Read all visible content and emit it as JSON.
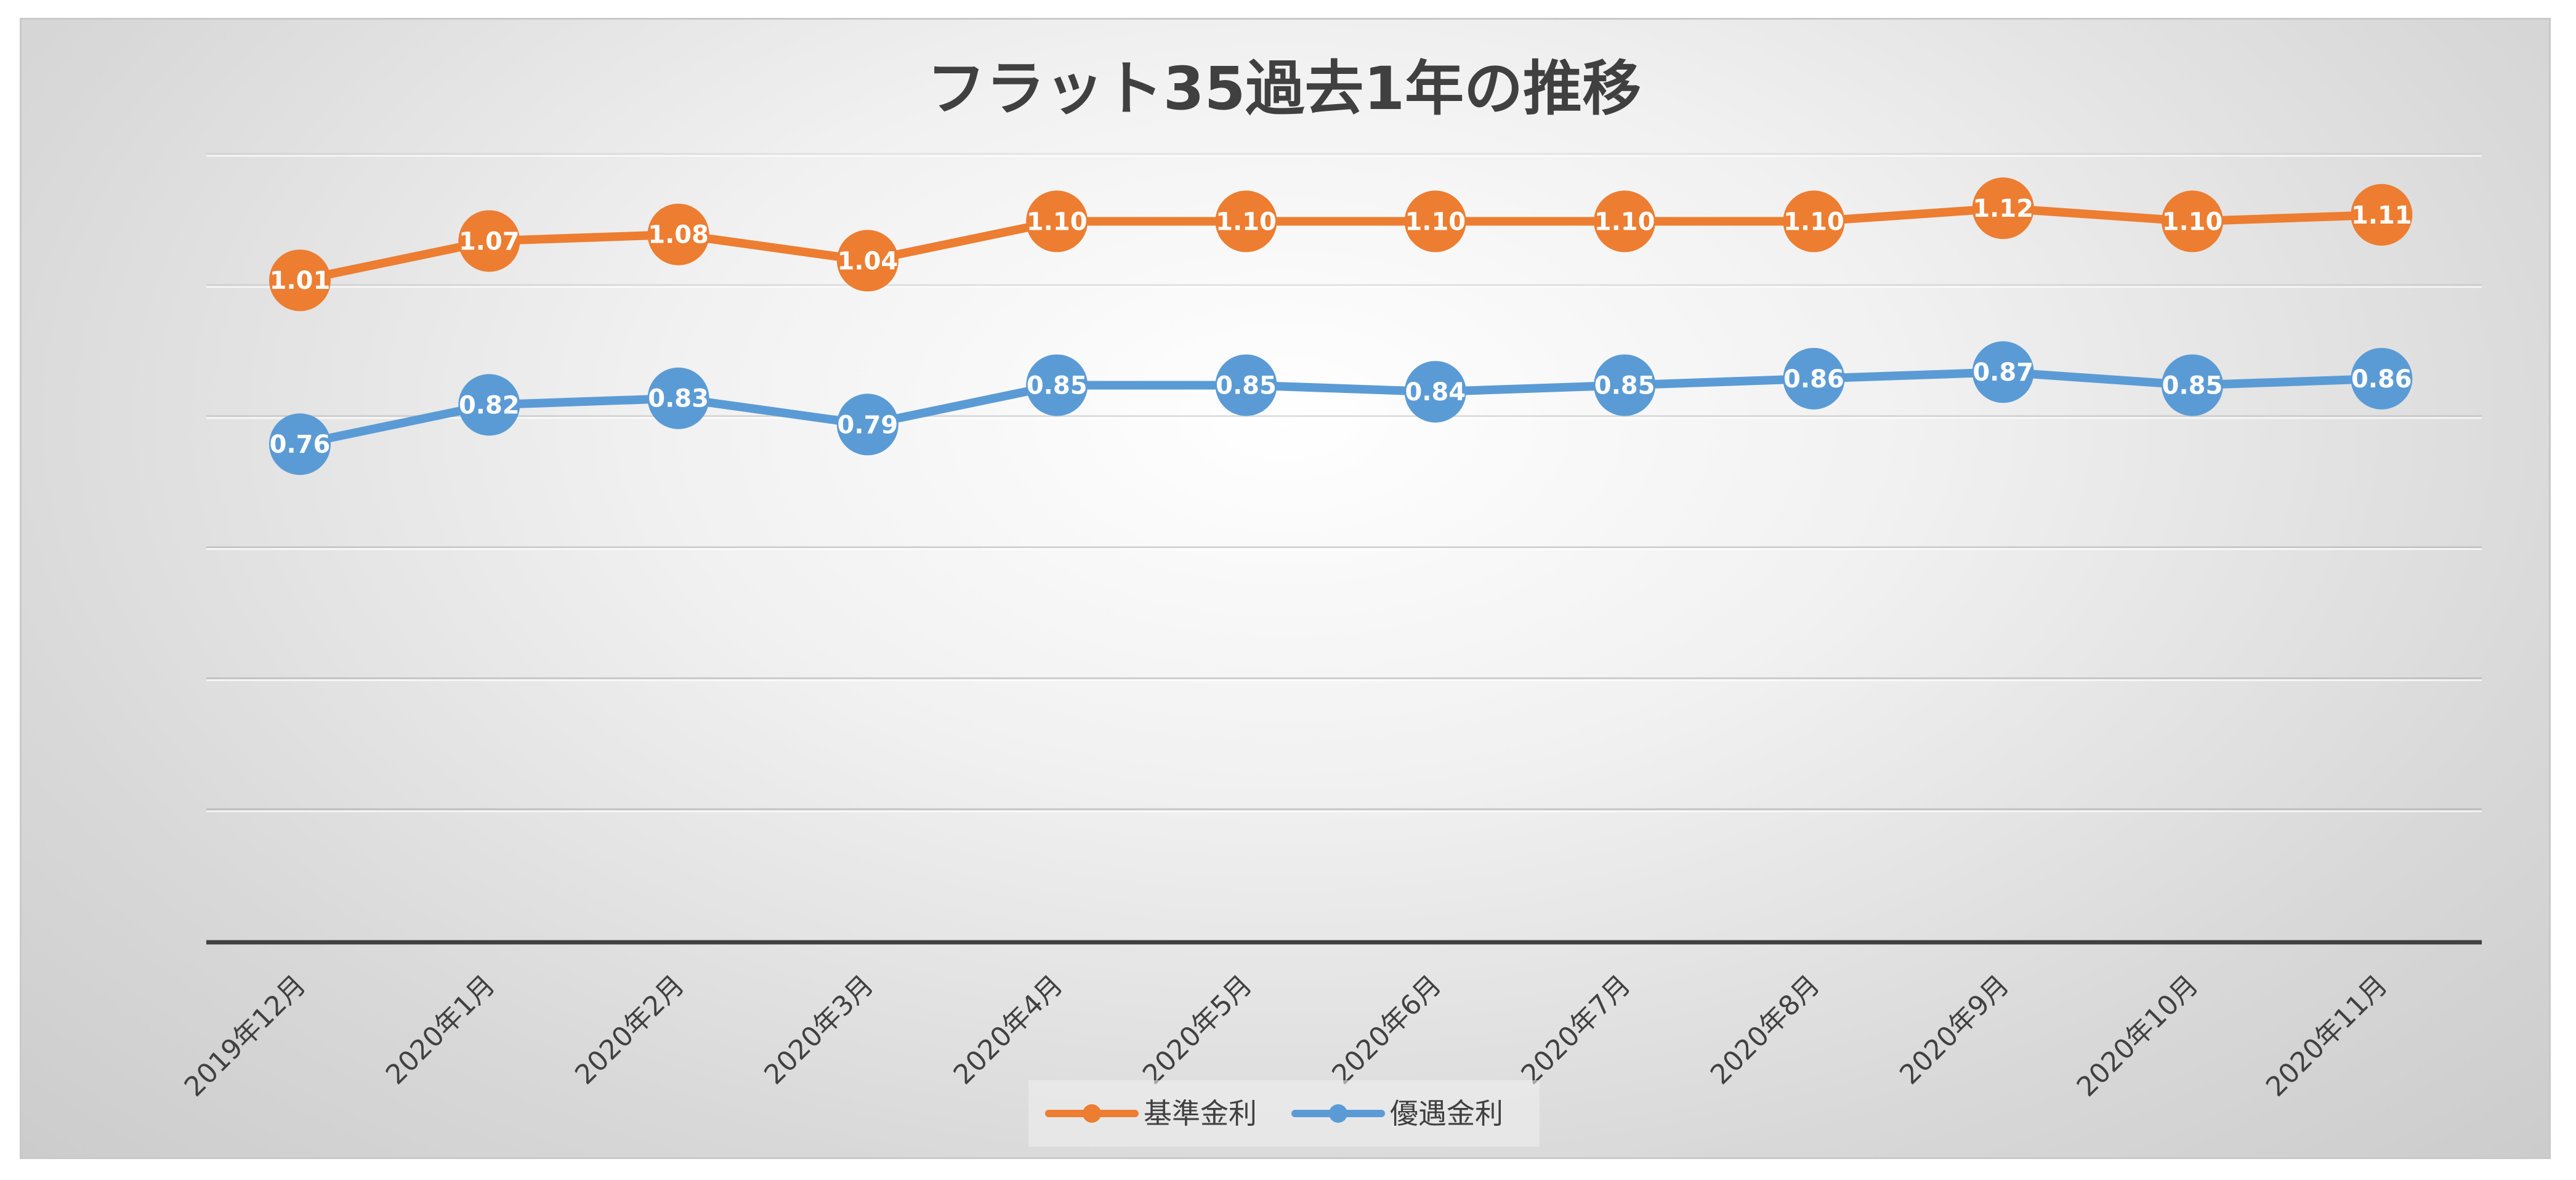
{
  "colors": {
    "series_1": "#ED7D31",
    "series_2": "#5B9BD5",
    "grid": "#a6a6a6",
    "axis": "#404040",
    "text": "#404040"
  },
  "chart_data": {
    "type": "line",
    "title": "フラット35過去1年の推移",
    "xlabel": "",
    "ylabel": "",
    "categories": [
      "2019年12月",
      "2020年1月",
      "2020年2月",
      "2020年3月",
      "2020年4月",
      "2020年5月",
      "2020年6月",
      "2020年7月",
      "2020年8月",
      "2020年9月",
      "2020年10月",
      "2020年11月"
    ],
    "series": [
      {
        "name": "基準金利",
        "values": [
          1.01,
          1.07,
          1.08,
          1.04,
          1.1,
          1.1,
          1.1,
          1.1,
          1.1,
          1.12,
          1.1,
          1.11
        ],
        "labels": [
          "1.01",
          "1.07",
          "1.08",
          "1.04",
          "1.10",
          "1.10",
          "1.10",
          "1.10",
          "1.10",
          "1.12",
          "1.10",
          "1.11"
        ]
      },
      {
        "name": "優遇金利",
        "values": [
          0.76,
          0.82,
          0.83,
          0.79,
          0.85,
          0.85,
          0.84,
          0.85,
          0.86,
          0.87,
          0.85,
          0.86
        ],
        "labels": [
          "0.76",
          "0.82",
          "0.83",
          "0.79",
          "0.85",
          "0.85",
          "0.84",
          "0.85",
          "0.86",
          "0.87",
          "0.85",
          "0.86"
        ]
      }
    ],
    "ylim": [
      0,
      1.2
    ],
    "y_gridlines": [
      0.2,
      0.4,
      0.6,
      0.8,
      1.0,
      1.2
    ],
    "y_tick_labels_visible": false,
    "grid": true,
    "data_labels": true,
    "legend_position": "bottom-center"
  }
}
